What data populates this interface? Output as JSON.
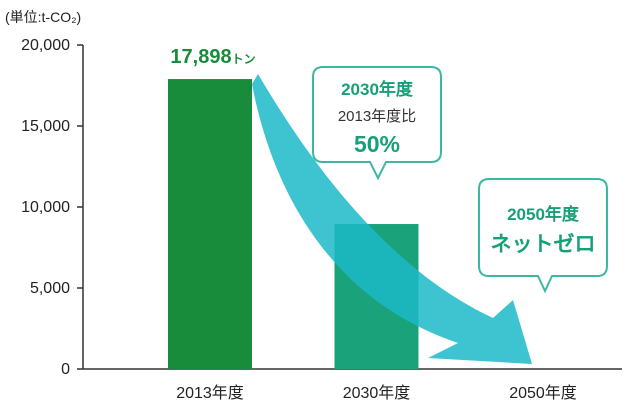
{
  "chart_data": {
    "type": "bar",
    "ylabel": "(単位:t-CO₂)",
    "categories": [
      "2013年度",
      "2030年度",
      "2050年度"
    ],
    "values": [
      17898,
      8949,
      0
    ],
    "ylim": [
      0,
      20000
    ],
    "yticks": [
      0,
      5000,
      10000,
      15000,
      20000
    ],
    "ytick_labels": [
      "0",
      "5,000",
      "10,000",
      "15,000",
      "20,000"
    ],
    "grid": false,
    "bar_colors": [
      "#198c3c",
      "#1aa37a",
      "#1aa37a"
    ],
    "data_labels": [
      {
        "value": "17,898",
        "unit": "トン"
      },
      null,
      null
    ],
    "callouts": [
      {
        "heading": "2030年度",
        "subtext": "2013年度比",
        "emphasis": "50%"
      },
      {
        "heading": "2050年度",
        "emphasis": "ネットゼロ"
      }
    ]
  },
  "colors": {
    "text": "#222222",
    "axis": "#333333",
    "data-label": "#198c3c",
    "callout-text": "#16a078",
    "callout-subtext": "#333333",
    "callout-border": "#3cb8a2",
    "trend-arrow": "#1bbac8",
    "background": "#ffffff"
  }
}
